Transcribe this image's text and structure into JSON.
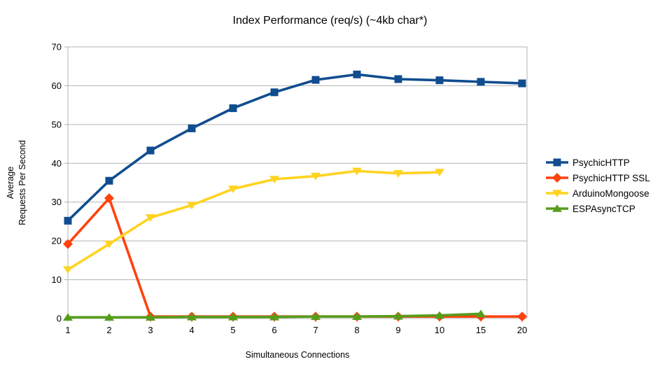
{
  "chart_data": {
    "type": "line",
    "title": "Index Performance (req/s) (~4kb char*)",
    "xlabel": "Simultaneous Connections",
    "ylabel_lines": [
      "Average",
      "Requests Per Second"
    ],
    "categories": [
      "1",
      "2",
      "3",
      "4",
      "5",
      "6",
      "7",
      "8",
      "9",
      "10",
      "15",
      "20"
    ],
    "ylim": [
      0,
      70
    ],
    "ytick_step": 10,
    "ytick_labels": [
      "0",
      "10",
      "20",
      "30",
      "40",
      "50",
      "60",
      "70"
    ],
    "grid": "horizontal",
    "legend_position": "right",
    "axis_color": "#b3b3b3",
    "text_color": "#000000",
    "series": [
      {
        "name": "PsychicHTTP",
        "color": "#104D8F",
        "marker": "square",
        "values": [
          25.2,
          35.5,
          43.3,
          49.0,
          54.2,
          58.3,
          61.5,
          62.9,
          61.7,
          61.4,
          61.0,
          60.6
        ]
      },
      {
        "name": "PsychicHTTP SSL",
        "color": "#FF420E",
        "marker": "diamond",
        "values": [
          19.2,
          31.0,
          0.5,
          0.5,
          0.5,
          0.5,
          0.5,
          0.5,
          0.5,
          0.5,
          0.5,
          0.5
        ]
      },
      {
        "name": "ArduinoMongoose",
        "color": "#FFD320",
        "marker": "triangle-down",
        "values": [
          12.6,
          19.2,
          26.0,
          29.2,
          33.4,
          35.9,
          36.7,
          38.0,
          37.4,
          37.7,
          null,
          null
        ]
      },
      {
        "name": "ESPAsyncTCP",
        "color": "#579D1C",
        "marker": "triangle-up",
        "values": [
          0.3,
          0.3,
          0.3,
          0.4,
          0.4,
          0.4,
          0.5,
          0.5,
          0.6,
          0.8,
          1.2,
          null
        ]
      }
    ]
  }
}
